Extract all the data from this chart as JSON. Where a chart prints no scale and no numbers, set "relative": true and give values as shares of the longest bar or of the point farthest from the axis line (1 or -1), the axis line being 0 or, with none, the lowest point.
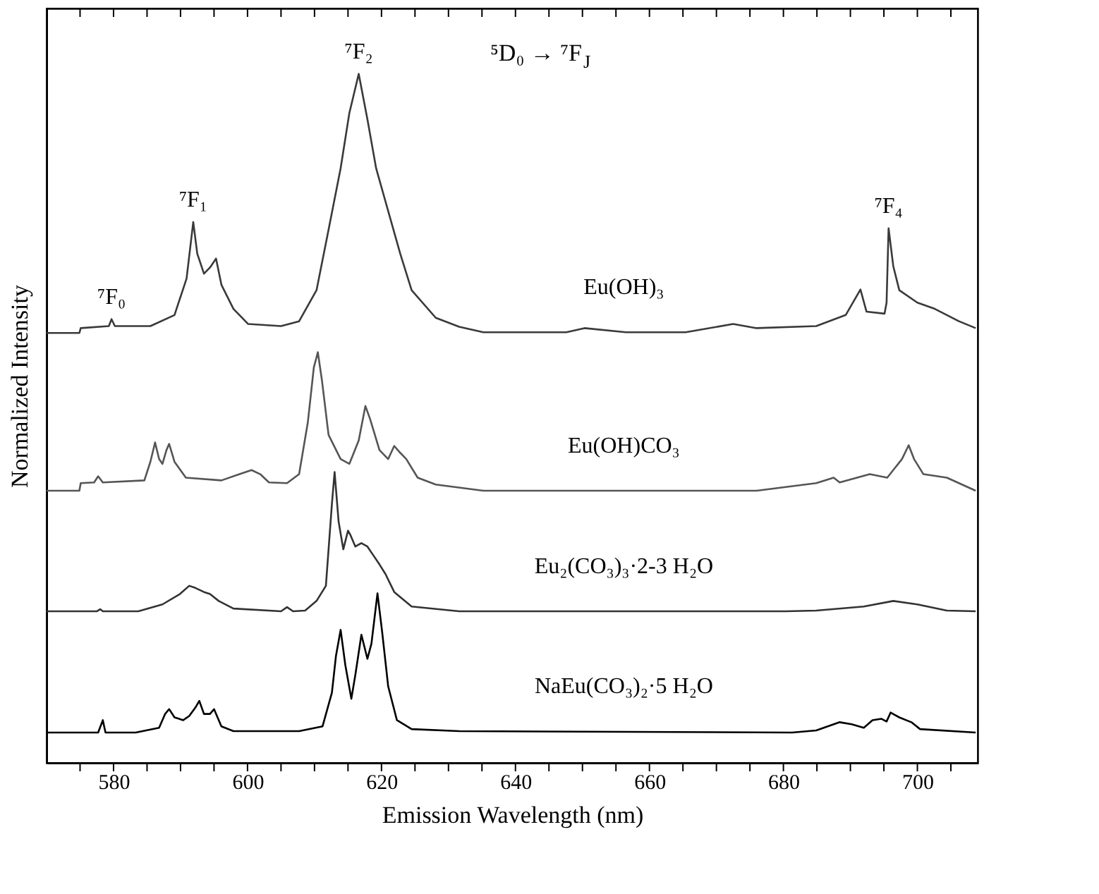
{
  "chart_data": {
    "type": "line",
    "relative": true,
    "xlabel": "Emission Wavelength (nm)",
    "ylabel": "Normalized Intensity",
    "xlim": [
      570,
      709
    ],
    "xticks": [
      {
        "value": 575,
        "label": null
      },
      580,
      {
        "value": 585,
        "label": null
      },
      {
        "value": 590,
        "label": null
      },
      {
        "value": 595,
        "label": null
      },
      600,
      {
        "value": 605,
        "label": null
      },
      {
        "value": 610,
        "label": null
      },
      {
        "value": 615,
        "label": null
      },
      620,
      {
        "value": 625,
        "label": null
      },
      {
        "value": 630,
        "label": null
      },
      {
        "value": 635,
        "label": null
      },
      640,
      {
        "value": 645,
        "label": null
      },
      {
        "value": 650,
        "label": null
      },
      {
        "value": 655,
        "label": null
      },
      660,
      {
        "value": 665,
        "label": null
      },
      {
        "value": 670,
        "label": null
      },
      {
        "value": 675,
        "label": null
      },
      680,
      {
        "value": 685,
        "label": null
      },
      {
        "value": 690,
        "label": null
      },
      {
        "value": 695,
        "label": null
      },
      700,
      {
        "value": 705,
        "label": null
      }
    ],
    "grid": false,
    "legend": false,
    "marker": "none",
    "line_style": "solid",
    "series": [
      {
        "name": "Eu(OH)₃",
        "color": "#3a3a3a",
        "x": [
          570.0,
          574.9,
          575.1,
          579.3,
          579.7,
          580.2,
          585.5,
          589.1,
          590.9,
          591.9,
          592.5,
          593.5,
          594.4,
          595.3,
          596.1,
          597.9,
          600.1,
          605.0,
          607.7,
          610.3,
          612.1,
          613.9,
          615.2,
          616.6,
          617.9,
          619.2,
          621.0,
          622.8,
          624.5,
          628.1,
          631.6,
          635.2,
          647.6,
          650.3,
          656.5,
          665.4,
          672.5,
          676.0,
          684.9,
          689.3,
          691.5,
          692.4,
          695.1,
          695.4,
          695.7,
          696.4,
          697.3,
          700.0,
          702.6,
          706.2,
          708.7
        ],
        "values": [
          0.624,
          0.624,
          0.631,
          0.634,
          0.644,
          0.634,
          0.634,
          0.65,
          0.703,
          0.785,
          0.739,
          0.71,
          0.719,
          0.732,
          0.694,
          0.659,
          0.637,
          0.634,
          0.641,
          0.686,
          0.774,
          0.863,
          0.943,
          1.0,
          0.934,
          0.863,
          0.801,
          0.739,
          0.686,
          0.646,
          0.633,
          0.625,
          0.625,
          0.631,
          0.625,
          0.625,
          0.637,
          0.631,
          0.634,
          0.65,
          0.687,
          0.655,
          0.652,
          0.668,
          0.776,
          0.721,
          0.686,
          0.668,
          0.659,
          0.641,
          0.631
        ]
      },
      {
        "name": "Eu(OH)CO₃",
        "color": "#555555",
        "x": [
          570.0,
          574.9,
          575.1,
          577.1,
          577.7,
          578.4,
          584.6,
          585.5,
          586.2,
          586.8,
          587.3,
          587.9,
          588.3,
          589.1,
          590.8,
          596.1,
          598.8,
          600.6,
          601.9,
          603.2,
          605.9,
          607.7,
          609.0,
          609.9,
          610.5,
          611.1,
          612.1,
          613.9,
          615.2,
          616.6,
          617.6,
          618.3,
          619.7,
          621.0,
          621.9,
          622.8,
          623.7,
          625.4,
          628.1,
          635.2,
          658.3,
          676.0,
          684.9,
          687.5,
          688.4,
          692.9,
          695.5,
          697.7,
          698.7,
          699.5,
          700.9,
          704.4,
          708.7
        ],
        "values": [
          0.395,
          0.395,
          0.406,
          0.407,
          0.416,
          0.407,
          0.41,
          0.437,
          0.465,
          0.441,
          0.434,
          0.454,
          0.463,
          0.437,
          0.414,
          0.41,
          0.419,
          0.425,
          0.419,
          0.407,
          0.406,
          0.419,
          0.494,
          0.574,
          0.596,
          0.556,
          0.476,
          0.441,
          0.434,
          0.468,
          0.518,
          0.499,
          0.454,
          0.441,
          0.46,
          0.45,
          0.441,
          0.414,
          0.404,
          0.395,
          0.395,
          0.395,
          0.406,
          0.414,
          0.407,
          0.419,
          0.414,
          0.441,
          0.461,
          0.441,
          0.419,
          0.414,
          0.395
        ]
      },
      {
        "name": "Eu₂(CO₃)₃·2-3 H₂O",
        "color": "#333333",
        "x": [
          570.0,
          577.5,
          578.0,
          578.4,
          583.7,
          587.3,
          589.9,
          591.3,
          592.2,
          593.5,
          594.4,
          595.7,
          597.9,
          605.0,
          605.9,
          606.8,
          608.6,
          610.3,
          611.7,
          612.6,
          613.0,
          613.6,
          614.3,
          615.0,
          615.3,
          616.1,
          617.0,
          617.9,
          618.8,
          619.7,
          620.6,
          621.9,
          624.5,
          631.6,
          649.4,
          658.3,
          680.4,
          684.9,
          692.0,
          696.4,
          700.0,
          704.4,
          708.7
        ],
        "values": [
          0.22,
          0.22,
          0.223,
          0.22,
          0.22,
          0.23,
          0.245,
          0.257,
          0.254,
          0.248,
          0.245,
          0.235,
          0.224,
          0.22,
          0.226,
          0.22,
          0.221,
          0.235,
          0.257,
          0.376,
          0.422,
          0.35,
          0.31,
          0.337,
          0.332,
          0.314,
          0.319,
          0.314,
          0.301,
          0.288,
          0.274,
          0.248,
          0.227,
          0.22,
          0.22,
          0.22,
          0.22,
          0.221,
          0.227,
          0.235,
          0.23,
          0.221,
          0.22
        ]
      },
      {
        "name": "NaEu(CO₃)₂·5 H₂O",
        "color": "#000000",
        "x": [
          570.0,
          577.7,
          578.4,
          578.8,
          583.3,
          586.8,
          587.7,
          588.3,
          589.1,
          590.4,
          591.3,
          592.2,
          592.8,
          593.5,
          594.4,
          595.0,
          596.1,
          597.9,
          607.7,
          611.2,
          612.6,
          613.2,
          613.9,
          614.6,
          615.5,
          616.1,
          617.0,
          617.9,
          618.5,
          619.4,
          620.1,
          621.0,
          622.3,
          624.5,
          631.6,
          681.3,
          684.9,
          688.4,
          690.2,
          692.0,
          693.3,
          694.6,
          695.4,
          696.0,
          697.3,
          699.1,
          700.4,
          708.7
        ],
        "values": [
          0.044,
          0.044,
          0.062,
          0.044,
          0.044,
          0.051,
          0.071,
          0.078,
          0.066,
          0.062,
          0.068,
          0.08,
          0.09,
          0.071,
          0.071,
          0.078,
          0.053,
          0.046,
          0.046,
          0.053,
          0.102,
          0.155,
          0.193,
          0.142,
          0.093,
          0.128,
          0.186,
          0.151,
          0.173,
          0.246,
          0.19,
          0.111,
          0.062,
          0.049,
          0.046,
          0.044,
          0.047,
          0.059,
          0.056,
          0.051,
          0.062,
          0.064,
          0.06,
          0.073,
          0.066,
          0.059,
          0.049,
          0.044
        ]
      }
    ],
    "annotations": [
      {
        "text": "⁷F₀",
        "x": 579.7,
        "y": 0.644
      },
      {
        "text": "⁷F₁",
        "x": 591.9,
        "y": 0.785
      },
      {
        "text": "⁷F₂",
        "x": 616.6,
        "y": 1.0
      },
      {
        "text": "⁷F₄",
        "x": 695.7,
        "y": 0.776
      },
      "⁵D₀ → ⁷F$_{J}$"
    ]
  }
}
